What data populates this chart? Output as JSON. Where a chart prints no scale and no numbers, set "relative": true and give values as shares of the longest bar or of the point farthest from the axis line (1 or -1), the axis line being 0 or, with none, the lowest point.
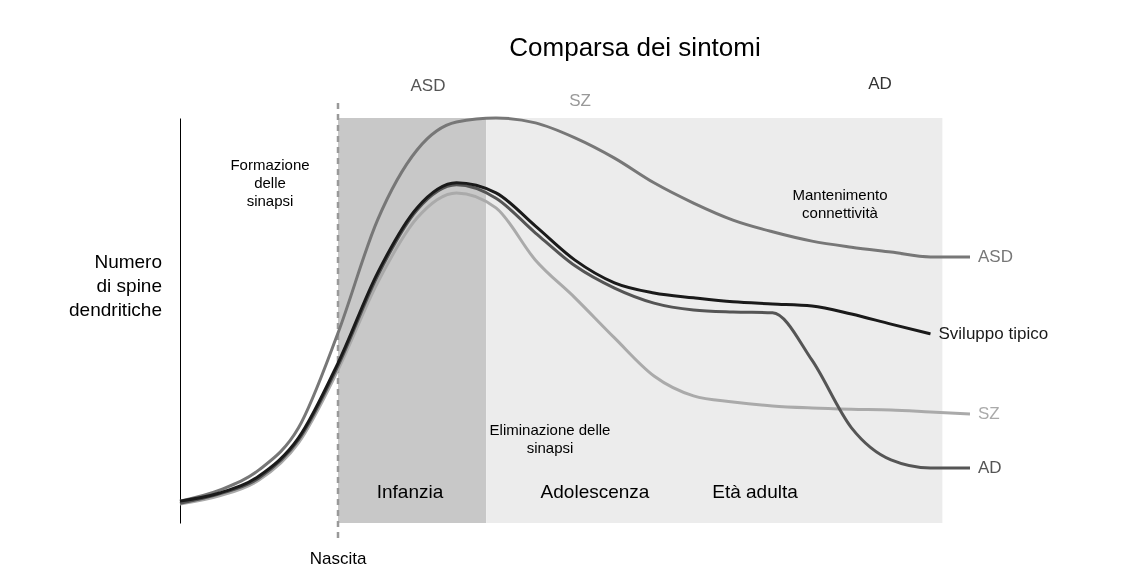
{
  "chart_data": {
    "type": "line",
    "relative": true,
    "title": "Comparsa dei sintomi",
    "ylabel": "Numero di spine dendritiche",
    "categories": [
      null,
      null,
      null,
      null,
      null,
      null,
      null,
      null,
      null,
      null,
      null,
      null,
      null,
      null,
      null,
      null,
      null,
      null,
      null,
      null,
      null
    ],
    "series": [
      {
        "name": "ASD",
        "color": "#777777",
        "values": [
          0.054,
          0.081,
          0.131,
          0.235,
          0.469,
          0.748,
          0.921,
          0.99,
          1.0,
          0.988,
          0.951,
          0.901,
          0.84,
          0.79,
          0.748,
          0.719,
          0.696,
          0.681,
          0.669,
          0.657,
          0.657
        ]
      },
      {
        "name": "SZ",
        "color": "#aaaaaa",
        "values": [
          0.047,
          0.067,
          0.106,
          0.198,
          0.378,
          0.593,
          0.753,
          0.815,
          0.778,
          0.649,
          0.556,
          0.457,
          0.363,
          0.314,
          0.299,
          0.289,
          0.284,
          0.281,
          0.279,
          0.274,
          0.269
        ]
      },
      {
        "name": "AD",
        "color": "#555555",
        "values": [
          0.049,
          0.072,
          0.111,
          0.205,
          0.388,
          0.61,
          0.773,
          0.835,
          0.802,
          0.716,
          0.635,
          0.58,
          0.543,
          0.526,
          0.521,
          0.519,
          0.402,
          0.235,
          0.156,
          0.136,
          0.136
        ]
      },
      {
        "name": "Sviluppo tipico",
        "color": "#1a1a1a",
        "values": [
          0.054,
          0.074,
          0.116,
          0.21,
          0.395,
          0.617,
          0.778,
          0.84,
          0.815,
          0.733,
          0.649,
          0.593,
          0.568,
          0.556,
          0.546,
          0.541,
          0.536,
          0.516,
          0.491,
          0.467,
          null
        ]
      }
    ],
    "annotations": [
      "Formazione delle sinapsi",
      "Eliminazione delle sinapsi",
      "Mantenimento connettività",
      "ASD",
      "SZ",
      "AD",
      "Infanzia",
      "Adolescenza",
      "Età adulta",
      "Nascita"
    ],
    "legend": false,
    "grid": false,
    "marker": "none",
    "line_style": "solid"
  }
}
